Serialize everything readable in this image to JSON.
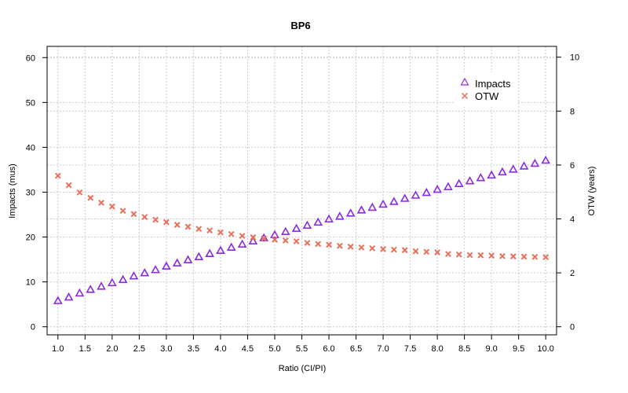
{
  "chart_data": {
    "type": "scatter",
    "title": "BP6",
    "xlabel": "Ratio (CI/PI)",
    "ylabel_left": "Impacts  (mus)",
    "ylabel_right": "OTW (years)",
    "xlim": [
      0.8,
      10.2
    ],
    "ylim_left": [
      -1.8,
      62.5
    ],
    "ylim_right": [
      -0.3,
      10.4
    ],
    "x_ticks": [
      "1.0",
      "1.5",
      "2.0",
      "2.5",
      "3.0",
      "3.5",
      "4.0",
      "4.5",
      "5.0",
      "5.5",
      "6.0",
      "6.5",
      "7.0",
      "7.5",
      "8.0",
      "8.5",
      "9.0",
      "9.5",
      "10.0"
    ],
    "y_ticks_left": [
      "0",
      "10",
      "20",
      "30",
      "40",
      "50",
      "60"
    ],
    "y_ticks_right": [
      "0",
      "2",
      "4",
      "6",
      "8",
      "10"
    ],
    "grid": true,
    "legend_position": "top-right",
    "x": [
      1.0,
      1.2,
      1.4,
      1.6,
      1.8,
      2.0,
      2.2,
      2.4,
      2.6,
      2.8,
      3.0,
      3.2,
      3.4,
      3.6,
      3.8,
      4.0,
      4.2,
      4.4,
      4.6,
      4.8,
      5.0,
      5.2,
      5.4,
      5.6,
      5.8,
      6.0,
      6.2,
      6.4,
      6.6,
      6.8,
      7.0,
      7.2,
      7.4,
      7.6,
      7.8,
      8.0,
      8.2,
      8.4,
      8.6,
      8.8,
      9.0,
      9.2,
      9.4,
      9.6,
      9.8,
      10.0
    ],
    "series": [
      {
        "name": "Impacts",
        "axis": "left",
        "marker": "triangle",
        "color": "#8a2be2",
        "values": [
          5.8,
          6.6,
          7.5,
          8.3,
          9.0,
          9.8,
          10.5,
          11.3,
          12.0,
          12.7,
          13.5,
          14.2,
          14.9,
          15.6,
          16.3,
          17.0,
          17.7,
          18.4,
          19.1,
          19.8,
          20.5,
          21.2,
          21.9,
          22.6,
          23.3,
          24.0,
          24.6,
          25.3,
          26.0,
          26.6,
          27.3,
          27.9,
          28.6,
          29.3,
          29.9,
          30.6,
          31.2,
          31.9,
          32.5,
          33.2,
          33.8,
          34.5,
          35.1,
          35.8,
          36.4,
          37.1
        ]
      },
      {
        "name": "OTW",
        "axis": "right",
        "marker": "cross",
        "color": "#e8705a",
        "values": [
          5.6,
          5.25,
          4.98,
          4.78,
          4.6,
          4.46,
          4.3,
          4.18,
          4.07,
          3.97,
          3.88,
          3.78,
          3.71,
          3.63,
          3.57,
          3.5,
          3.44,
          3.37,
          3.32,
          3.27,
          3.23,
          3.2,
          3.17,
          3.11,
          3.07,
          3.04,
          3.0,
          2.97,
          2.94,
          2.91,
          2.88,
          2.86,
          2.84,
          2.8,
          2.78,
          2.76,
          2.7,
          2.68,
          2.66,
          2.65,
          2.64,
          2.62,
          2.61,
          2.6,
          2.59,
          2.58
        ]
      }
    ]
  }
}
